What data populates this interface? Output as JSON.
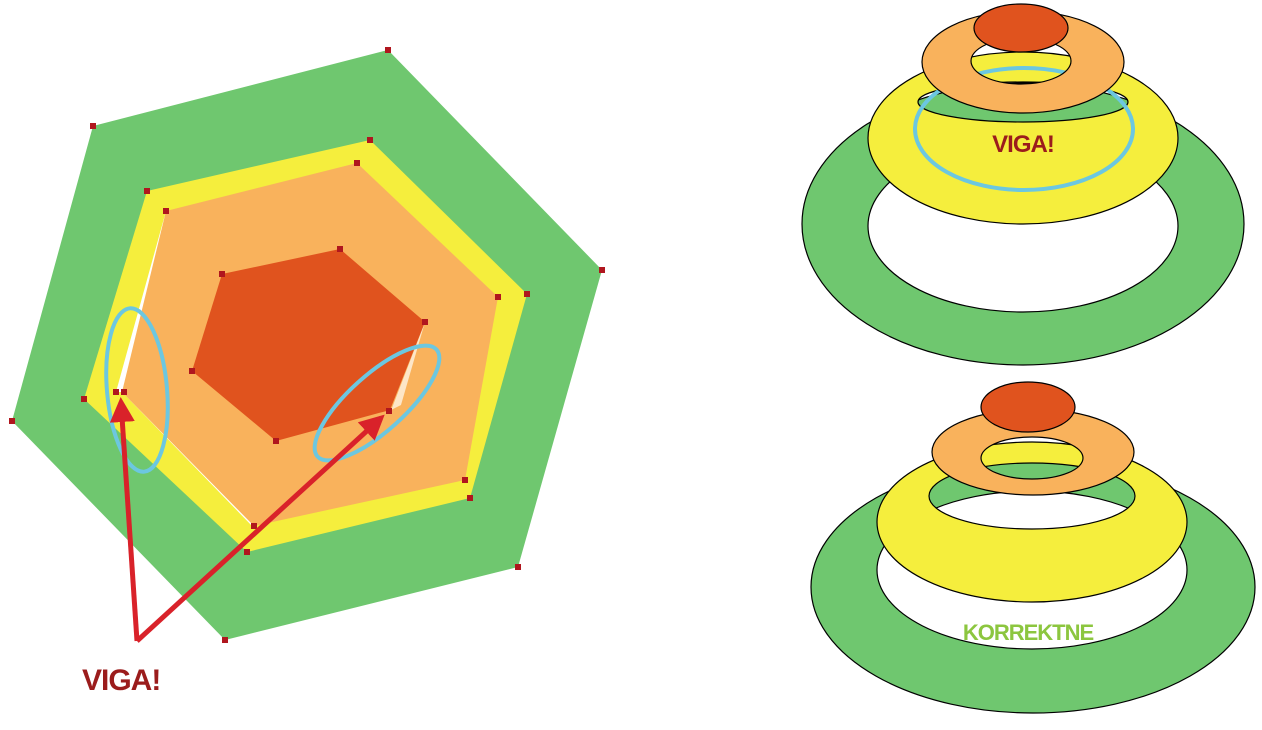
{
  "labels": {
    "left_error": "VIGA!",
    "right_top_error": "VIGA!",
    "right_bottom_ok": "KORREKTNE"
  },
  "colors": {
    "green": "#6fc76f",
    "yellow": "#f5ee3d",
    "orange": "#f9b25c",
    "red_orange": "#e0531e",
    "highlight_blue": "#6cc7e0",
    "arrow_red": "#d9222a",
    "label_dark_red": "#9b1c1c",
    "label_green": "#8cc63f",
    "vertex_marker": "#b0161e",
    "outline": "#000000",
    "background": "#ffffff"
  }
}
